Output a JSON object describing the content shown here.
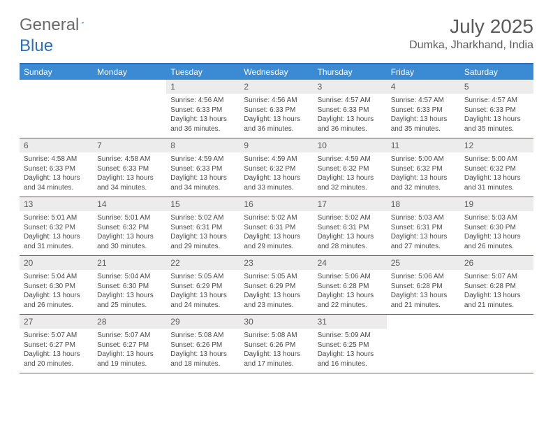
{
  "brand": {
    "part1": "General",
    "part2": "Blue"
  },
  "title": "July 2025",
  "location": "Dumka, Jharkhand, India",
  "colors": {
    "accent": "#3b8bd4",
    "border": "#2d6fb8",
    "daynum_bg": "#ececec",
    "text_muted": "#5a5a5a"
  },
  "dow": [
    "Sunday",
    "Monday",
    "Tuesday",
    "Wednesday",
    "Thursday",
    "Friday",
    "Saturday"
  ],
  "weeks": [
    [
      {
        "n": "",
        "lines": []
      },
      {
        "n": "",
        "lines": []
      },
      {
        "n": "1",
        "lines": [
          "Sunrise: 4:56 AM",
          "Sunset: 6:33 PM",
          "Daylight: 13 hours",
          "and 36 minutes."
        ]
      },
      {
        "n": "2",
        "lines": [
          "Sunrise: 4:56 AM",
          "Sunset: 6:33 PM",
          "Daylight: 13 hours",
          "and 36 minutes."
        ]
      },
      {
        "n": "3",
        "lines": [
          "Sunrise: 4:57 AM",
          "Sunset: 6:33 PM",
          "Daylight: 13 hours",
          "and 36 minutes."
        ]
      },
      {
        "n": "4",
        "lines": [
          "Sunrise: 4:57 AM",
          "Sunset: 6:33 PM",
          "Daylight: 13 hours",
          "and 35 minutes."
        ]
      },
      {
        "n": "5",
        "lines": [
          "Sunrise: 4:57 AM",
          "Sunset: 6:33 PM",
          "Daylight: 13 hours",
          "and 35 minutes."
        ]
      }
    ],
    [
      {
        "n": "6",
        "lines": [
          "Sunrise: 4:58 AM",
          "Sunset: 6:33 PM",
          "Daylight: 13 hours",
          "and 34 minutes."
        ]
      },
      {
        "n": "7",
        "lines": [
          "Sunrise: 4:58 AM",
          "Sunset: 6:33 PM",
          "Daylight: 13 hours",
          "and 34 minutes."
        ]
      },
      {
        "n": "8",
        "lines": [
          "Sunrise: 4:59 AM",
          "Sunset: 6:33 PM",
          "Daylight: 13 hours",
          "and 34 minutes."
        ]
      },
      {
        "n": "9",
        "lines": [
          "Sunrise: 4:59 AM",
          "Sunset: 6:32 PM",
          "Daylight: 13 hours",
          "and 33 minutes."
        ]
      },
      {
        "n": "10",
        "lines": [
          "Sunrise: 4:59 AM",
          "Sunset: 6:32 PM",
          "Daylight: 13 hours",
          "and 32 minutes."
        ]
      },
      {
        "n": "11",
        "lines": [
          "Sunrise: 5:00 AM",
          "Sunset: 6:32 PM",
          "Daylight: 13 hours",
          "and 32 minutes."
        ]
      },
      {
        "n": "12",
        "lines": [
          "Sunrise: 5:00 AM",
          "Sunset: 6:32 PM",
          "Daylight: 13 hours",
          "and 31 minutes."
        ]
      }
    ],
    [
      {
        "n": "13",
        "lines": [
          "Sunrise: 5:01 AM",
          "Sunset: 6:32 PM",
          "Daylight: 13 hours",
          "and 31 minutes."
        ]
      },
      {
        "n": "14",
        "lines": [
          "Sunrise: 5:01 AM",
          "Sunset: 6:32 PM",
          "Daylight: 13 hours",
          "and 30 minutes."
        ]
      },
      {
        "n": "15",
        "lines": [
          "Sunrise: 5:02 AM",
          "Sunset: 6:31 PM",
          "Daylight: 13 hours",
          "and 29 minutes."
        ]
      },
      {
        "n": "16",
        "lines": [
          "Sunrise: 5:02 AM",
          "Sunset: 6:31 PM",
          "Daylight: 13 hours",
          "and 29 minutes."
        ]
      },
      {
        "n": "17",
        "lines": [
          "Sunrise: 5:02 AM",
          "Sunset: 6:31 PM",
          "Daylight: 13 hours",
          "and 28 minutes."
        ]
      },
      {
        "n": "18",
        "lines": [
          "Sunrise: 5:03 AM",
          "Sunset: 6:31 PM",
          "Daylight: 13 hours",
          "and 27 minutes."
        ]
      },
      {
        "n": "19",
        "lines": [
          "Sunrise: 5:03 AM",
          "Sunset: 6:30 PM",
          "Daylight: 13 hours",
          "and 26 minutes."
        ]
      }
    ],
    [
      {
        "n": "20",
        "lines": [
          "Sunrise: 5:04 AM",
          "Sunset: 6:30 PM",
          "Daylight: 13 hours",
          "and 26 minutes."
        ]
      },
      {
        "n": "21",
        "lines": [
          "Sunrise: 5:04 AM",
          "Sunset: 6:30 PM",
          "Daylight: 13 hours",
          "and 25 minutes."
        ]
      },
      {
        "n": "22",
        "lines": [
          "Sunrise: 5:05 AM",
          "Sunset: 6:29 PM",
          "Daylight: 13 hours",
          "and 24 minutes."
        ]
      },
      {
        "n": "23",
        "lines": [
          "Sunrise: 5:05 AM",
          "Sunset: 6:29 PM",
          "Daylight: 13 hours",
          "and 23 minutes."
        ]
      },
      {
        "n": "24",
        "lines": [
          "Sunrise: 5:06 AM",
          "Sunset: 6:28 PM",
          "Daylight: 13 hours",
          "and 22 minutes."
        ]
      },
      {
        "n": "25",
        "lines": [
          "Sunrise: 5:06 AM",
          "Sunset: 6:28 PM",
          "Daylight: 13 hours",
          "and 21 minutes."
        ]
      },
      {
        "n": "26",
        "lines": [
          "Sunrise: 5:07 AM",
          "Sunset: 6:28 PM",
          "Daylight: 13 hours",
          "and 21 minutes."
        ]
      }
    ],
    [
      {
        "n": "27",
        "lines": [
          "Sunrise: 5:07 AM",
          "Sunset: 6:27 PM",
          "Daylight: 13 hours",
          "and 20 minutes."
        ]
      },
      {
        "n": "28",
        "lines": [
          "Sunrise: 5:07 AM",
          "Sunset: 6:27 PM",
          "Daylight: 13 hours",
          "and 19 minutes."
        ]
      },
      {
        "n": "29",
        "lines": [
          "Sunrise: 5:08 AM",
          "Sunset: 6:26 PM",
          "Daylight: 13 hours",
          "and 18 minutes."
        ]
      },
      {
        "n": "30",
        "lines": [
          "Sunrise: 5:08 AM",
          "Sunset: 6:26 PM",
          "Daylight: 13 hours",
          "and 17 minutes."
        ]
      },
      {
        "n": "31",
        "lines": [
          "Sunrise: 5:09 AM",
          "Sunset: 6:25 PM",
          "Daylight: 13 hours",
          "and 16 minutes."
        ]
      },
      {
        "n": "",
        "lines": []
      },
      {
        "n": "",
        "lines": []
      }
    ]
  ]
}
